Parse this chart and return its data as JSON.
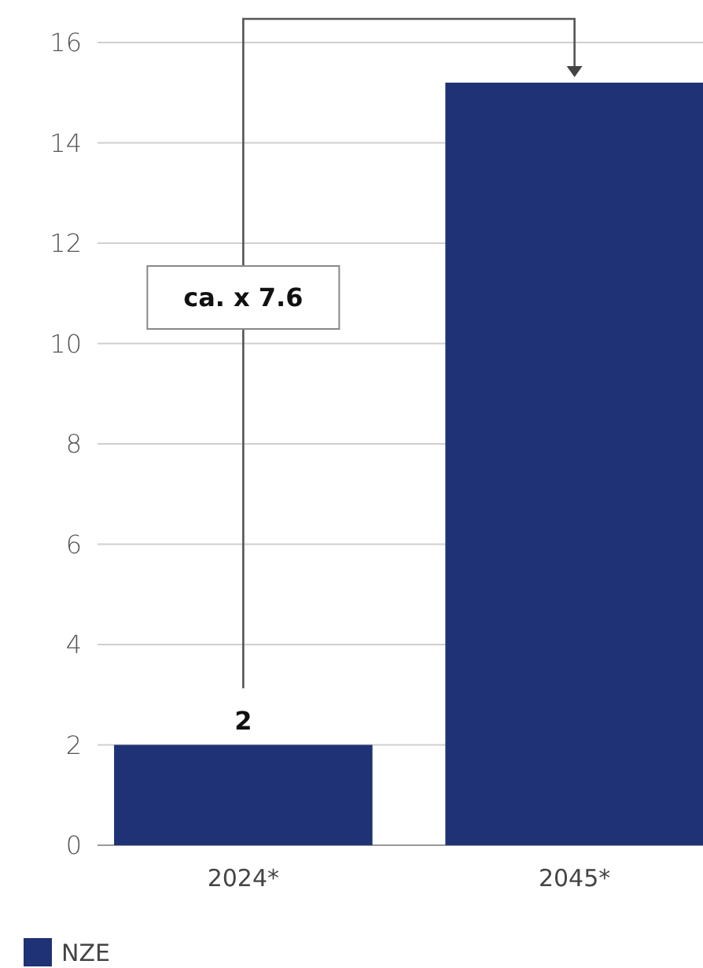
{
  "chart_data": {
    "type": "bar",
    "categories": [
      "2024*",
      "2045*"
    ],
    "series": [
      {
        "name": "NZE",
        "color": "#1f3275",
        "values": [
          2,
          15.2
        ]
      }
    ],
    "value_labels": [
      "2",
      null
    ],
    "ylim": [
      0,
      16
    ],
    "yticks": [
      0,
      2,
      4,
      6,
      8,
      10,
      12,
      14,
      16
    ],
    "grid": "y",
    "legend": "bottom left",
    "annotations": [
      "ca. x 7.6"
    ]
  }
}
